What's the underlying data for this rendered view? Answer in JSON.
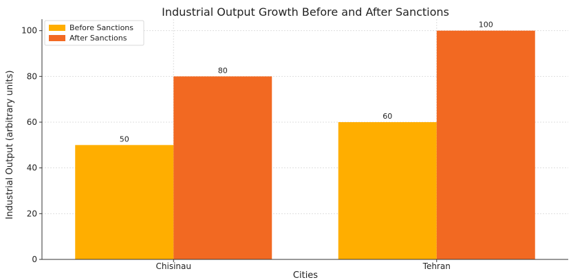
{
  "chart_data": {
    "type": "bar",
    "title": "Industrial Output Growth Before and After Sanctions",
    "xlabel": "Cities",
    "ylabel": "Industrial Output (arbitrary units)",
    "categories": [
      "Chisinau",
      "Tehran"
    ],
    "series": [
      {
        "name": "Before Sanctions",
        "values": [
          50,
          60
        ],
        "color": "#FFAE00"
      },
      {
        "name": "After Sanctions",
        "values": [
          80,
          100
        ],
        "color": "#F26922"
      }
    ],
    "ylim": [
      0,
      105
    ],
    "yticks": [
      0,
      20,
      40,
      60,
      80,
      100
    ],
    "grid": true,
    "legend_position": "top-left",
    "data_labels": [
      [
        "50",
        "60"
      ],
      [
        "80",
        "100"
      ]
    ]
  }
}
